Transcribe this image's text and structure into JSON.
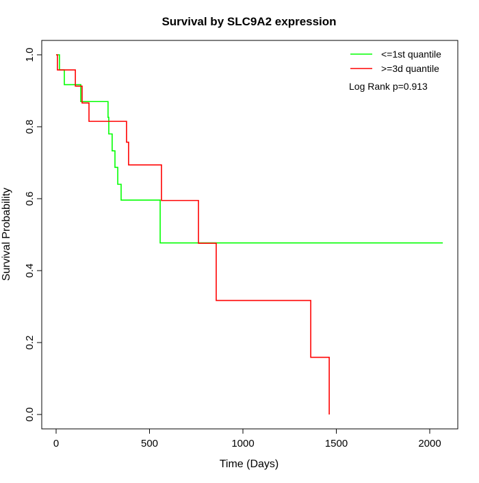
{
  "chart_data": {
    "type": "line",
    "title": "Survival by SLC9A2 expression",
    "xlabel": "Time (Days)",
    "ylabel": "Survival Probability",
    "xlim": [
      0,
      2070
    ],
    "ylim": [
      0,
      1
    ],
    "xticks": [
      0,
      500,
      1000,
      1500,
      2000
    ],
    "yticks": [
      0.0,
      0.2,
      0.4,
      0.6,
      0.8,
      1.0
    ],
    "ytick_labels": [
      "0.0",
      "0.2",
      "0.4",
      "0.6",
      "0.8",
      "1.0"
    ],
    "legend_position": "top-right",
    "annotation": "Log Rank p=0.913",
    "series": [
      {
        "name": "<=1st quantile",
        "color": "#00ff00",
        "x": [
          0,
          18,
          44,
          132,
          278,
          282,
          300,
          315,
          330,
          348,
          557,
          2070
        ],
        "y": [
          1.0,
          0.958,
          0.917,
          0.87,
          0.826,
          0.78,
          0.733,
          0.687,
          0.64,
          0.596,
          0.477,
          0.477
        ]
      },
      {
        "name": ">=3d quantile",
        "color": "#ff0000",
        "x": [
          0,
          7,
          103,
          139,
          176,
          377,
          388,
          564,
          762,
          857,
          1363,
          1462
        ],
        "y": [
          1.0,
          0.958,
          0.913,
          0.866,
          0.815,
          0.757,
          0.694,
          0.595,
          0.476,
          0.317,
          0.159,
          0.0
        ]
      }
    ]
  }
}
